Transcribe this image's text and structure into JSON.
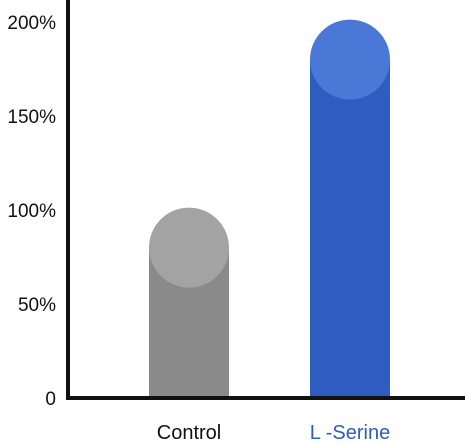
{
  "chart_data": {
    "type": "bar",
    "categories": [
      "Control",
      "L -Serine"
    ],
    "values": [
      80,
      180
    ],
    "y_ticks": [
      "0",
      "50%",
      "100%",
      "150%",
      "200%"
    ],
    "y_tick_values": [
      0,
      50,
      100,
      150,
      200
    ],
    "ylim": [
      0,
      200
    ],
    "grid": false,
    "legend": "none",
    "colors": {
      "bars": [
        "#8a8a8a",
        "#2f5cc0"
      ],
      "caps": [
        "#a3a3a3",
        "#4a78d6"
      ],
      "labels": [
        "#111111",
        "#2f5cc0"
      ],
      "axis": "#111111"
    }
  }
}
